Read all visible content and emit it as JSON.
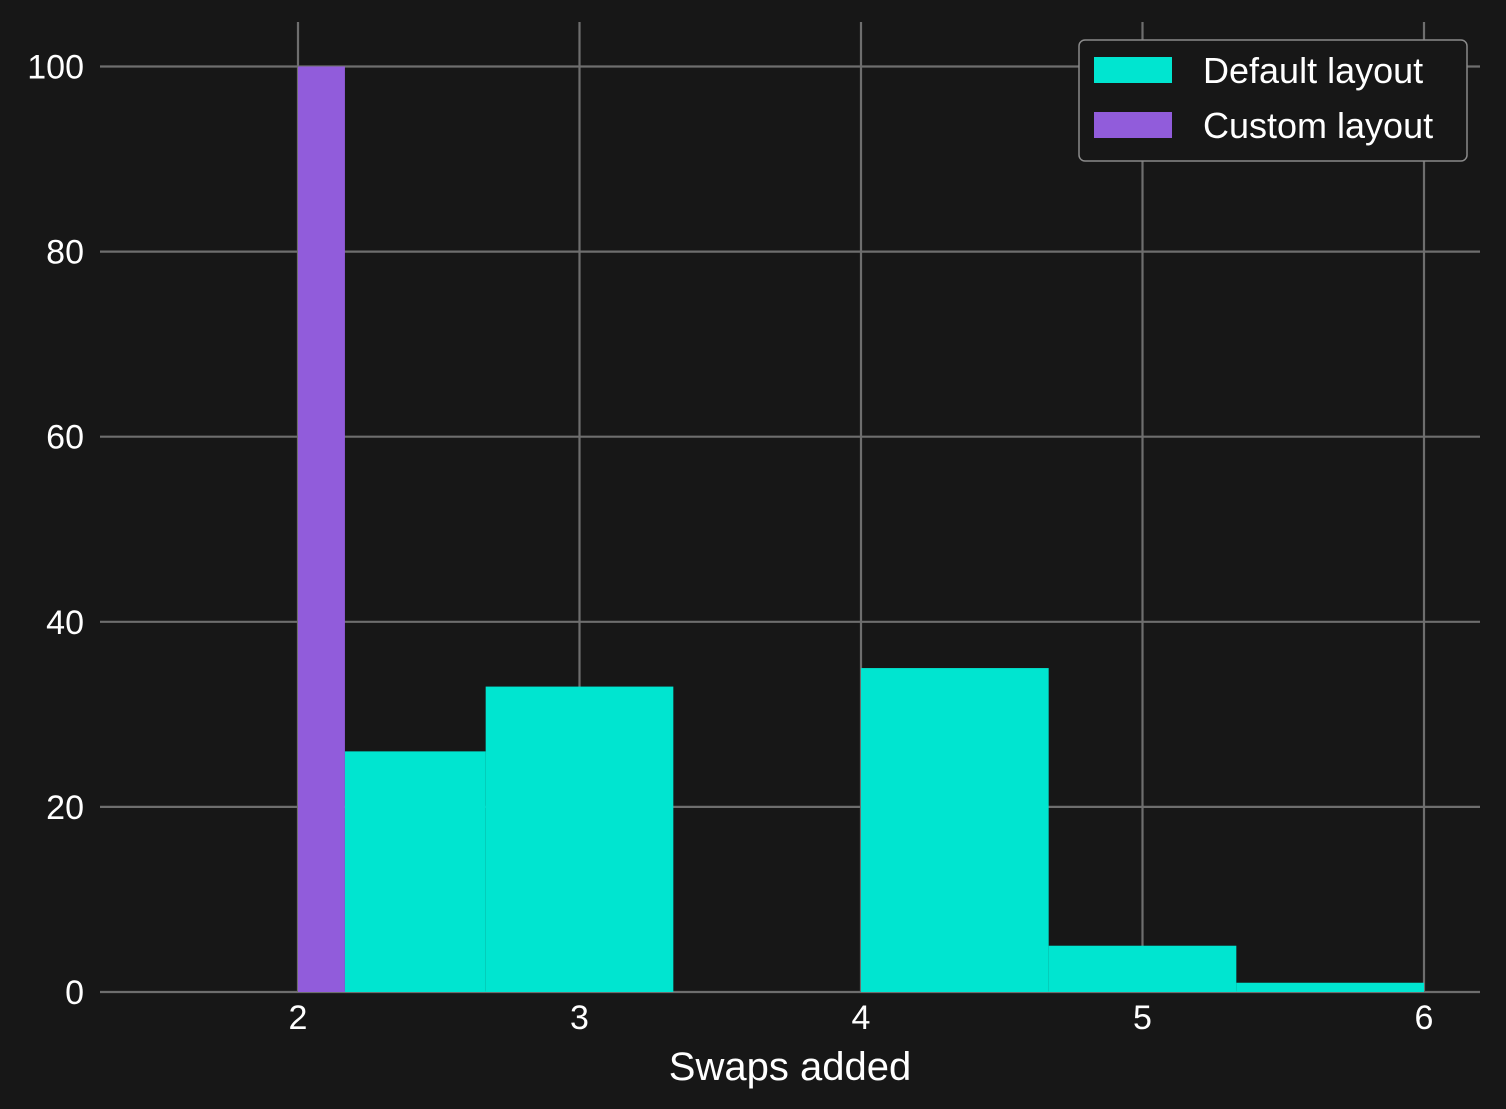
{
  "colors": {
    "background": "#171717",
    "grid": "#6e6e6e",
    "default_layout": "#00e5d0",
    "custom_layout": "#915cdb",
    "text": "#ffffff"
  },
  "chart_data": {
    "type": "bar",
    "title": "",
    "xlabel": "Swaps added",
    "ylabel": "",
    "xlim": [
      1.3,
      6.2
    ],
    "ylim": [
      0,
      100
    ],
    "grid": true,
    "legend_position": "top-right",
    "xticks": [
      2,
      3,
      4,
      5,
      6
    ],
    "yticks": [
      0,
      20,
      40,
      60,
      80,
      100
    ],
    "series": [
      {
        "name": "Custom layout",
        "color": "#915cdb",
        "bins": [
          {
            "x0": 2.0,
            "x1": 2.1667,
            "value": 100
          }
        ]
      },
      {
        "name": "Default layout",
        "color": "#00e5d0",
        "bins": [
          {
            "x0": 2.1667,
            "x1": 2.6667,
            "value": 26
          },
          {
            "x0": 2.6667,
            "x1": 3.3333,
            "value": 33
          },
          {
            "x0": 3.3333,
            "x1": 4.0,
            "value": 0
          },
          {
            "x0": 4.0,
            "x1": 4.6667,
            "value": 35
          },
          {
            "x0": 4.6667,
            "x1": 5.3333,
            "value": 5
          },
          {
            "x0": 5.3333,
            "x1": 6.0,
            "value": 1
          }
        ]
      }
    ],
    "legend": [
      "Default layout",
      "Custom layout"
    ]
  }
}
